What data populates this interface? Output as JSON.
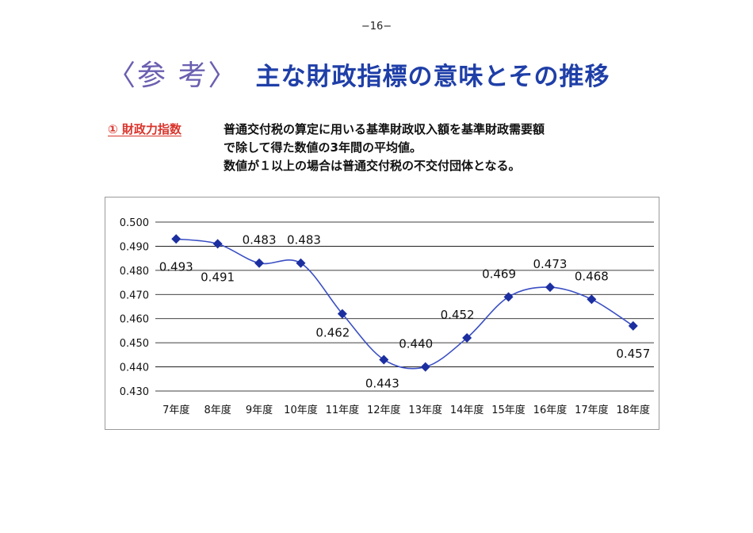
{
  "page": {
    "number": "−16−"
  },
  "header": {
    "ref_label": "〈参 考〉",
    "title": "主な財政指標の意味とその推移"
  },
  "section": {
    "label": "① 財政力指数",
    "lines": [
      "普通交付税の算定に用いる基準財政収入額を基準財政需要額",
      "で除して得た数値の3年間の平均値。",
      "数値が１以上の場合は普通交付税の不交付団体となる。"
    ]
  },
  "chart_data": {
    "type": "line",
    "categories": [
      "7年度",
      "8年度",
      "9年度",
      "10年度",
      "11年度",
      "12年度",
      "13年度",
      "14年度",
      "15年度",
      "16年度",
      "17年度",
      "18年度"
    ],
    "values": [
      0.493,
      0.491,
      0.483,
      0.483,
      0.462,
      0.443,
      0.44,
      0.452,
      0.469,
      0.473,
      0.468,
      0.457
    ],
    "data_labels": [
      "0.493",
      "0.491",
      "0.483",
      "0.483",
      "0.462",
      "0.443",
      "0.440",
      "0.452",
      "0.469",
      "0.473",
      "0.468",
      "0.457"
    ],
    "ylim": [
      0.43,
      0.5
    ],
    "yticks": [
      "0.500",
      "0.490",
      "0.480",
      "0.470",
      "0.460",
      "0.450",
      "0.440",
      "0.430"
    ],
    "grid": true,
    "smooth": true,
    "colors": {
      "line": "#3a4fc4",
      "marker": "#1c2fa0",
      "grid": "#000000"
    }
  }
}
